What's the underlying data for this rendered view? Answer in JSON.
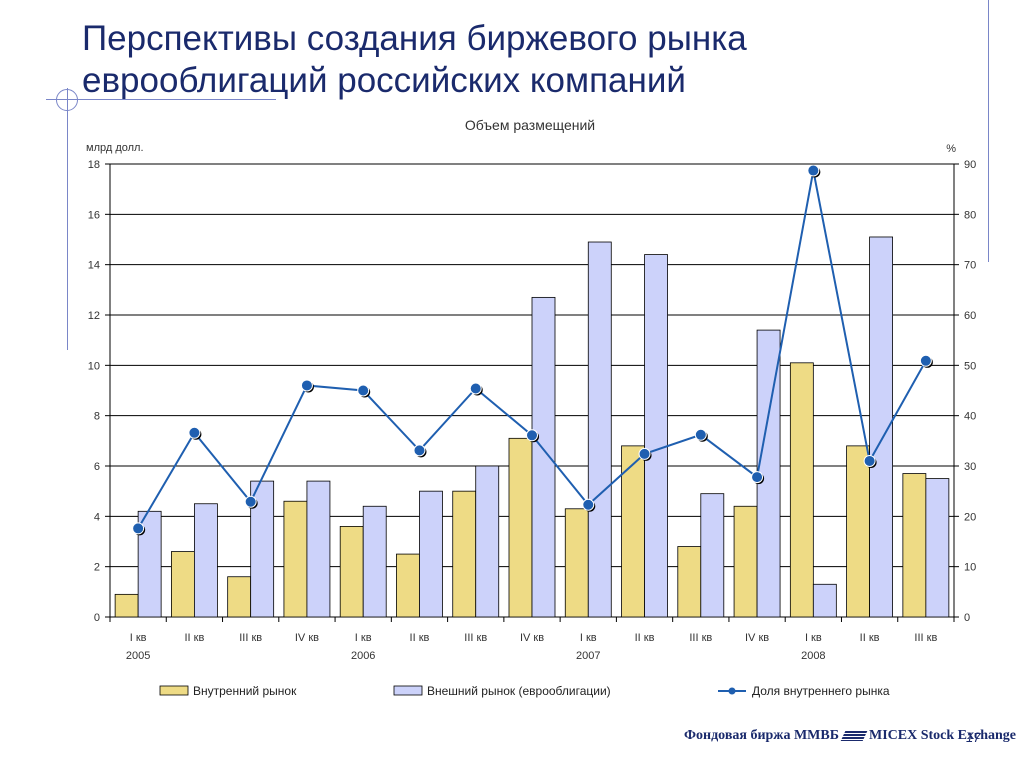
{
  "slide": {
    "title_line1": "Перспективы создания биржевого рынка",
    "title_line2": "еврооблигаций российских компаний",
    "page_number": "17",
    "brand_left": "Фондовая биржа ММВБ",
    "brand_right": "MICEX Stock Exchange"
  },
  "chart_data": {
    "type": "bar",
    "title": "Объем размещений",
    "ylabel_left": "млрд долл.",
    "ylabel_right": "%",
    "ylim_left": [
      0,
      18
    ],
    "yticks_left": [
      0,
      2,
      4,
      6,
      8,
      10,
      12,
      14,
      16,
      18
    ],
    "ylim_right": [
      0,
      90
    ],
    "yticks_right": [
      0,
      10,
      20,
      30,
      40,
      50,
      60,
      70,
      80,
      90
    ],
    "grid": true,
    "legend_position": "bottom",
    "categories": [
      "I кв",
      "II кв",
      "III кв",
      "IV кв",
      "I кв",
      "II кв",
      "III кв",
      "IV кв",
      "I кв",
      "II кв",
      "III кв",
      "IV кв",
      "I кв",
      "II кв",
      "III кв"
    ],
    "year_labels": [
      {
        "category_index": 0,
        "label": "2005"
      },
      {
        "category_index": 4,
        "label": "2006"
      },
      {
        "category_index": 8,
        "label": "2007"
      },
      {
        "category_index": 12,
        "label": "2008"
      }
    ],
    "series": [
      {
        "name": "Внутренний рынок",
        "type": "bar",
        "axis": "left",
        "color": "#eedb85",
        "values": [
          0.9,
          2.6,
          1.6,
          4.6,
          3.6,
          2.5,
          5.0,
          7.1,
          4.3,
          6.8,
          2.8,
          4.4,
          10.1,
          6.8,
          5.7
        ]
      },
      {
        "name": "Внешний рынок (еврооблигации)",
        "type": "bar",
        "axis": "left",
        "color": "#ccd2fa",
        "values": [
          4.2,
          4.5,
          5.4,
          5.4,
          4.4,
          5.0,
          6.0,
          12.7,
          14.9,
          14.4,
          4.9,
          11.4,
          1.3,
          15.1,
          5.5
        ]
      },
      {
        "name": "Доля внутреннего рынка",
        "type": "line",
        "axis": "right",
        "color": "#1f5fb0",
        "values": [
          17.6,
          36.6,
          22.9,
          46.0,
          45.0,
          33.1,
          45.4,
          36.1,
          22.3,
          32.4,
          36.2,
          27.8,
          88.7,
          31.0,
          50.9
        ]
      }
    ]
  }
}
